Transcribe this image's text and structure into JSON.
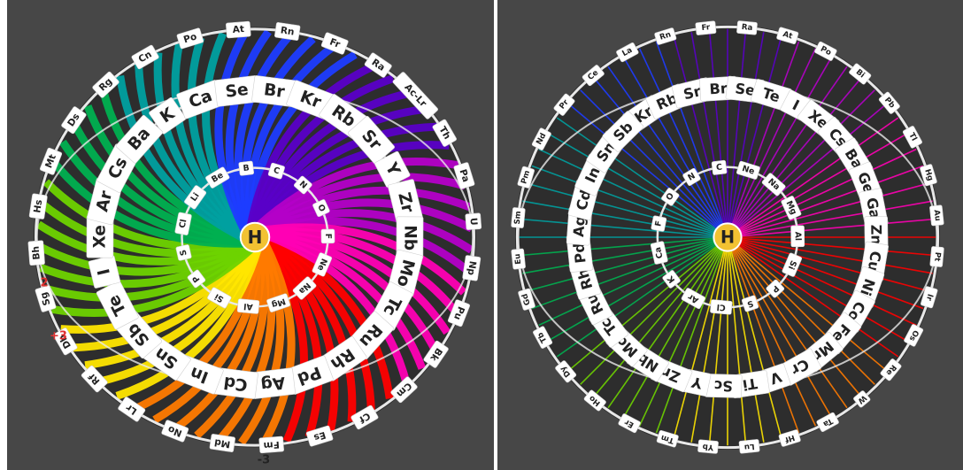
{
  "center_label": "H",
  "colors": {
    "background": "#474747",
    "ring": "#e8e8e8",
    "center_fill": "#f2c232",
    "spectrum": [
      "#ff0000",
      "#ff7a00",
      "#ffe600",
      "#6ed300",
      "#00b050",
      "#00a0a0",
      "#1e3cff",
      "#5a00c8",
      "#b400c8",
      "#ff00b4"
    ]
  },
  "left_sphere": {
    "inner_ring": [
      "C",
      "N",
      "O",
      "F",
      "Ne",
      "Na",
      "Mg",
      "Al",
      "Si",
      "P",
      "S",
      "Cl",
      "Li",
      "Be",
      "B"
    ],
    "middle_ring": [
      "K",
      "Ca",
      "Se",
      "Br",
      "Kr",
      "Rb",
      "Sr",
      "Y",
      "Zr",
      "Nb",
      "Mo",
      "Tc",
      "Ru",
      "Rh",
      "Pd",
      "Ag",
      "Cd",
      "In",
      "Sn",
      "Sb",
      "Te",
      "I",
      "Xe",
      "Ar",
      "Cs",
      "Ba"
    ],
    "outer_ring": [
      "Po",
      "At",
      "Rn",
      "Fr",
      "Ra",
      "Ac-Lr",
      "Th",
      "Pa",
      "U",
      "Np",
      "Pu",
      "Bk",
      "Cm",
      "Cf",
      "Es",
      "Fm",
      "Md",
      "No",
      "Lr",
      "Rf",
      "Db",
      "Sg",
      "Bh",
      "Hs",
      "Mt",
      "Ds",
      "Rg",
      "Cn"
    ],
    "edge_numbers": [
      "2",
      "+3",
      "-3"
    ]
  },
  "right_sphere": {
    "inner_ring": [
      "Ne",
      "Na",
      "Mg",
      "Al",
      "Si",
      "P",
      "S",
      "Cl",
      "Ar",
      "K",
      "Ca",
      "F",
      "O",
      "N",
      "C"
    ],
    "middle_ring": [
      "Kr",
      "Rb",
      "Sr",
      "Br",
      "Se",
      "Te",
      "I",
      "Xe",
      "Cs",
      "Ba",
      "Ge",
      "Ga",
      "Zn",
      "Cu",
      "Ni",
      "Co",
      "Fe",
      "Mn",
      "Cr",
      "V",
      "Ti",
      "Sc",
      "Y",
      "Zr",
      "Nb",
      "Mo",
      "Tc",
      "Ru",
      "Rh",
      "Pd",
      "Ag",
      "Cd",
      "In",
      "Sn",
      "Sb"
    ],
    "outer_ring": [
      "Rn",
      "Fr",
      "Ra",
      "At",
      "Po",
      "Bi",
      "Pb",
      "Tl",
      "Hg",
      "Au",
      "Pt",
      "Ir",
      "Os",
      "Re",
      "W",
      "Ta",
      "Hf",
      "Lu",
      "Yb",
      "Tm",
      "Er",
      "Ho",
      "Dy",
      "Tb",
      "Gd",
      "Eu",
      "Sm",
      "Pm",
      "Nd",
      "Pr",
      "Ce",
      "La"
    ]
  }
}
